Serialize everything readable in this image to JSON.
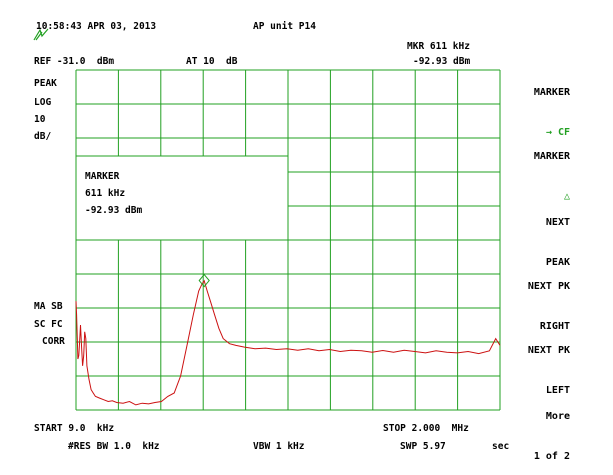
{
  "header": {
    "timestamp": "10:58:43 APR 03, 2013",
    "title": "AP unit P14",
    "marker_readout_label": "MKR 611 kHz",
    "marker_readout_value": "-92.93 dBm",
    "ref_level": "REF -31.0  dBm",
    "attenuation": "AT 10  dB"
  },
  "left_panel": {
    "detector": "PEAK",
    "scale_type": "LOG",
    "scale_value": "10",
    "scale_unit": "dB/",
    "ma_sb": "MA SB",
    "sc_fc": "SC FC",
    "corr": "CORR"
  },
  "marker_box": {
    "title": "MARKER",
    "freq": "611 kHz",
    "level": "-92.93 dBm"
  },
  "softkeys": [
    {
      "line1": "MARKER",
      "line2": "→ CF"
    },
    {
      "line1": "MARKER",
      "line2": "△"
    },
    {
      "line1": "NEXT",
      "line2": "PEAK"
    },
    {
      "line1": "NEXT PK",
      "line2": "RIGHT"
    },
    {
      "line1": "NEXT PK",
      "line2": "LEFT"
    },
    {
      "line1": "More",
      "line2": "1 of 2"
    }
  ],
  "footer": {
    "start": "START 9.0  kHz",
    "stop": "STOP 2.000  MHz",
    "rbw": "#RES BW 1.0  kHz",
    "vbw": "VBW 1 kHz",
    "sweep": "SWP 5.97",
    "sweep_unit": "sec"
  },
  "colors": {
    "grid": "#22a022",
    "trace": "#cc1111",
    "marker": "#22a022"
  },
  "chart_data": {
    "type": "line",
    "xlabel": "",
    "ylabel": "",
    "xlim_khz": [
      9,
      2000
    ],
    "ylim_dbm": [
      -131,
      -31
    ],
    "grid": true,
    "marker": {
      "x_khz": 611,
      "y_dbm": -92.93
    },
    "series": [
      {
        "x_khz": [
          9,
          12,
          15,
          18,
          22,
          26,
          30,
          35,
          40,
          45,
          50,
          55,
          60,
          70,
          80,
          90,
          100,
          120,
          140,
          160,
          180,
          200,
          230,
          260,
          290,
          320,
          350,
          380,
          410,
          440,
          470,
          500,
          530,
          560,
          585,
          600,
          611,
          625,
          640,
          660,
          680,
          700,
          730,
          760,
          800,
          850,
          900,
          950,
          1000,
          1050,
          1100,
          1150,
          1200,
          1250,
          1300,
          1350,
          1400,
          1450,
          1500,
          1550,
          1600,
          1650,
          1700,
          1750,
          1800,
          1850,
          1900,
          1950,
          1980,
          2000
        ],
        "y_dbm": [
          -99,
          -103,
          -110,
          -116,
          -115,
          -111,
          -106,
          -112,
          -118,
          -115,
          -108,
          -110,
          -118,
          -122,
          -125,
          -126,
          -127,
          -127.5,
          -128,
          -128.5,
          -128.3,
          -128.8,
          -129,
          -128.5,
          -129.5,
          -129,
          -129.2,
          -128.8,
          -128.5,
          -127,
          -126,
          -121,
          -112,
          -103,
          -96,
          -94,
          -93,
          -96,
          -99,
          -103,
          -107,
          -110,
          -111.5,
          -112,
          -112.5,
          -113,
          -112.8,
          -113.2,
          -113,
          -113.4,
          -113,
          -113.6,
          -113.2,
          -113.8,
          -113.4,
          -113.6,
          -114,
          -113.5,
          -114,
          -113.4,
          -113.8,
          -114.2,
          -113.6,
          -114,
          -114.2,
          -113.8,
          -114.4,
          -113.6,
          -110,
          -112
        ]
      }
    ]
  }
}
